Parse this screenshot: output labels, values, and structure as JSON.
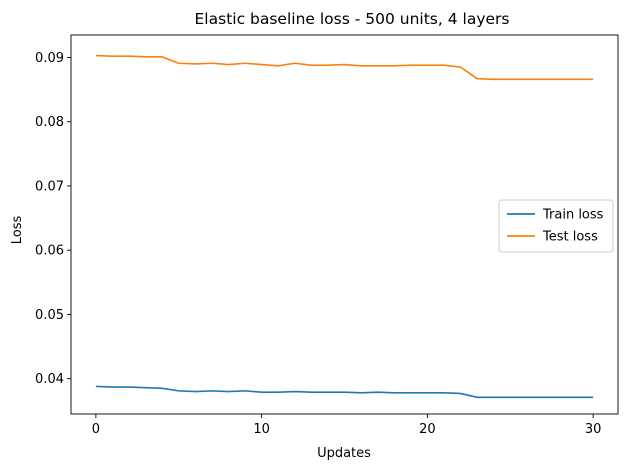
{
  "chart_data": {
    "type": "line",
    "title": "Elastic baseline loss - 500 units, 4 layers",
    "xlabel": "Updates",
    "ylabel": "Loss",
    "xlim": [
      -1.5,
      31.5
    ],
    "ylim": [
      0.0345,
      0.0935
    ],
    "xticks": [
      0,
      10,
      20,
      30
    ],
    "yticks": [
      0.04,
      0.05,
      0.06,
      0.07,
      0.08,
      0.09
    ],
    "ytick_labels": [
      "0.04",
      "0.05",
      "0.06",
      "0.07",
      "0.08",
      "0.09"
    ],
    "legend_position": "center-right",
    "grid": false,
    "x": [
      0,
      1,
      2,
      3,
      4,
      5,
      6,
      7,
      8,
      9,
      10,
      11,
      12,
      13,
      14,
      15,
      16,
      17,
      18,
      19,
      20,
      21,
      22,
      23,
      24,
      25,
      26,
      27,
      28,
      29,
      30
    ],
    "series": [
      {
        "name": "Train loss",
        "color": "#1f77b4",
        "values": [
          0.0388,
          0.0387,
          0.0387,
          0.0386,
          0.0385,
          0.0381,
          0.038,
          0.0381,
          0.038,
          0.0381,
          0.0379,
          0.0379,
          0.038,
          0.0379,
          0.0379,
          0.0379,
          0.0378,
          0.0379,
          0.0378,
          0.0378,
          0.0378,
          0.0378,
          0.0377,
          0.0371,
          0.0371,
          0.0371,
          0.0371,
          0.0371,
          0.0371,
          0.0371,
          0.0371
        ]
      },
      {
        "name": "Test loss",
        "color": "#ff7f0e",
        "values": [
          0.0903,
          0.0902,
          0.0902,
          0.0901,
          0.0901,
          0.0891,
          0.089,
          0.0891,
          0.0889,
          0.0891,
          0.0889,
          0.0887,
          0.0891,
          0.0888,
          0.0888,
          0.0889,
          0.0887,
          0.0887,
          0.0887,
          0.0888,
          0.0888,
          0.0888,
          0.0885,
          0.0867,
          0.0866,
          0.0866,
          0.0866,
          0.0866,
          0.0866,
          0.0866,
          0.0866
        ]
      }
    ]
  }
}
